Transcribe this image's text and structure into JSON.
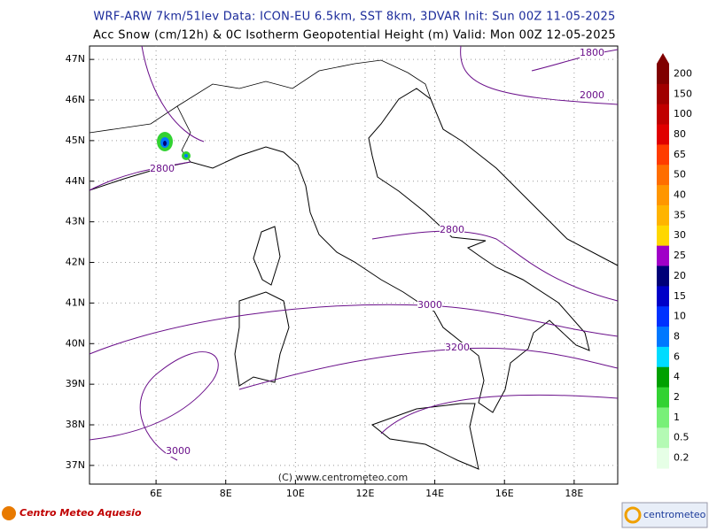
{
  "header": {
    "line1": "WRF-ARW 7km/51lev  Data: ICON-EU 6.5km, SST 8km, 3DVAR  Init: Sun 00Z 11-05-2025",
    "line2": "Acc Snow (cm/12h) & 0C Isotherm Geopotential Height (m)  Valid: Mon 00Z 12-05-2025"
  },
  "map": {
    "lon_range": [
      4.09,
      19.25
    ],
    "lat_range": [
      36.54,
      47.33
    ],
    "lat_ticks": [
      {
        "value": 47,
        "label": "47N"
      },
      {
        "value": 46,
        "label": "46N"
      },
      {
        "value": 45,
        "label": "45N"
      },
      {
        "value": 44,
        "label": "44N"
      },
      {
        "value": 43,
        "label": "43N"
      },
      {
        "value": 42,
        "label": "42N"
      },
      {
        "value": 41,
        "label": "41N"
      },
      {
        "value": 40,
        "label": "40N"
      },
      {
        "value": 39,
        "label": "39N"
      },
      {
        "value": 38,
        "label": "38N"
      },
      {
        "value": 37,
        "label": "37N"
      }
    ],
    "lon_ticks": [
      {
        "value": 6,
        "label": "6E"
      },
      {
        "value": 8,
        "label": "8E"
      },
      {
        "value": 10,
        "label": "10E"
      },
      {
        "value": 12,
        "label": "12E"
      },
      {
        "value": 14,
        "label": "14E"
      },
      {
        "value": 16,
        "label": "16E"
      },
      {
        "value": 18,
        "label": "18E"
      }
    ],
    "contour_labels": [
      "1800",
      "2000",
      "2800",
      "2800",
      "3000",
      "3200",
      "3000"
    ],
    "copyright": "(C) www.centrometeo.com"
  },
  "colorbar": {
    "labels": [
      "200",
      "150",
      "100",
      "80",
      "65",
      "50",
      "40",
      "35",
      "30",
      "25",
      "20",
      "15",
      "10",
      "8",
      "6",
      "4",
      "2",
      "1",
      "0.5",
      "0.2"
    ],
    "colors": [
      "#800000",
      "#a00000",
      "#c00000",
      "#e00000",
      "#ff3c00",
      "#ff6e00",
      "#ff9600",
      "#ffb400",
      "#ffd700",
      "#a000c8",
      "#000078",
      "#0000c8",
      "#0032ff",
      "#0078ff",
      "#00dcff",
      "#00a000",
      "#32d232",
      "#78f078",
      "#b4fab4",
      "#e6ffe6"
    ]
  },
  "logos": {
    "left": "Centro Meteo Aquesio",
    "right": "centrometeo"
  }
}
